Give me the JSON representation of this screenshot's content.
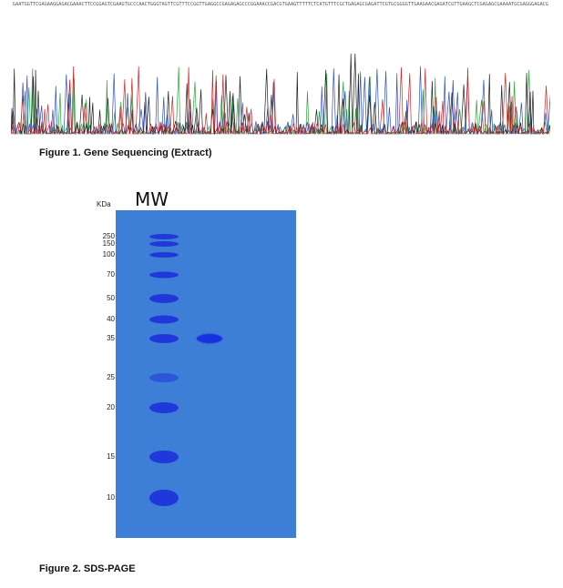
{
  "figure1": {
    "caption": "Figure 1. Gene Sequencing (Extract)",
    "sequence": "GAATGGTTCGAGAAGGAGACGAAACTTCCGGAGTCGAAGTGCCCAACTGGGTAGTTCGTTTCCGGTTGAGGCCGAGAGAGCCCGGAAACCGACGTGAAGTTTTTCTCATGTTTCGCTGAGAGCGAGATTCGTGCGGGGTTGAAGAACGAGATCGTTGAAGCTCGAGAGCGAAAATGCGAGGGAGACG",
    "base_colors": {
      "A": "#2aa33a",
      "C": "#2d4fcf",
      "G": "#222222",
      "T": "#d22626"
    }
  },
  "figure2": {
    "caption": "Figure 2. SDS-PAGE",
    "kda_label": "KDa",
    "mw_label": "MW",
    "gel_color": "#3d7ed6",
    "ladder": [
      {
        "kda": "250",
        "value": 250
      },
      {
        "kda": "150",
        "value": 150
      },
      {
        "kda": "100",
        "value": 100
      },
      {
        "kda": "70",
        "value": 70
      },
      {
        "kda": "50",
        "value": 50
      },
      {
        "kda": "40",
        "value": 40
      },
      {
        "kda": "35",
        "value": 35
      },
      {
        "kda": "25",
        "value": 25
      },
      {
        "kda": "20",
        "value": 20
      },
      {
        "kda": "15",
        "value": 15
      },
      {
        "kda": "10",
        "value": 10
      }
    ],
    "sample_band_kda": 35
  }
}
